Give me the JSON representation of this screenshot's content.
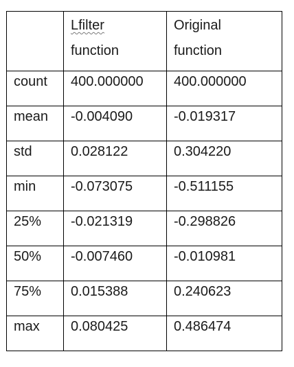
{
  "table": {
    "header": {
      "corner": "",
      "col1_line1": "Lfilter",
      "col1_line2": "function",
      "col2_line1": "Original",
      "col2_line2": "function"
    },
    "rows": [
      {
        "label": "count",
        "lfilter": "400.000000",
        "original": "400.000000"
      },
      {
        "label": "mean",
        "lfilter": "-0.004090",
        "original": "-0.019317"
      },
      {
        "label": "std",
        "lfilter": "0.028122",
        "original": "0.304220"
      },
      {
        "label": "min",
        "lfilter": "-0.073075",
        "original": "-0.511155"
      },
      {
        "label": "25%",
        "lfilter": "-0.021319",
        "original": "-0.298826"
      },
      {
        "label": "50%",
        "lfilter": "-0.007460",
        "original": "-0.010981"
      },
      {
        "label": "75%",
        "lfilter": "0.015388",
        "original": "0.240623"
      },
      {
        "label": "max",
        "lfilter": "0.080425",
        "original": "0.486474"
      }
    ]
  }
}
